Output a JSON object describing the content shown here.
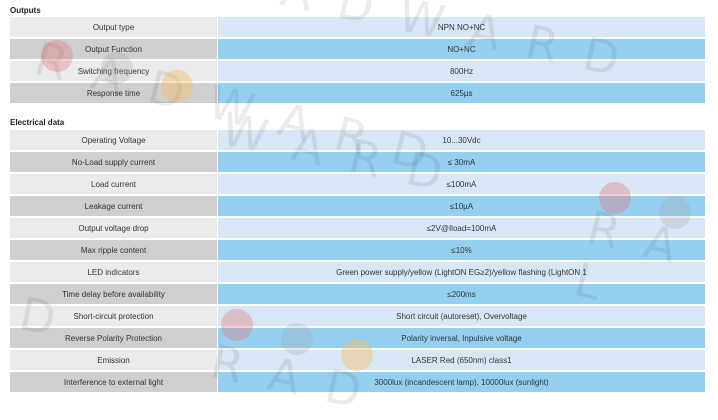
{
  "outputs": {
    "title": "Outputs",
    "rows": [
      {
        "label": "Output type",
        "value": "NPN NO+NC"
      },
      {
        "label": "Output Function",
        "value": "NO+NC"
      },
      {
        "label": "Switching frequency",
        "value": "800Hz"
      },
      {
        "label": "Response time",
        "value": "625µs"
      }
    ]
  },
  "electrical": {
    "title": "Electrical data",
    "rows": [
      {
        "label": "Operating Voltage",
        "value": "10...30Vdc"
      },
      {
        "label": "No-Load supply current",
        "value": "≤ 30mA"
      },
      {
        "label": "Load current",
        "value": "≤100mA"
      },
      {
        "label": "Leakage current",
        "value": "≤10µA"
      },
      {
        "label": "Output voltage drop",
        "value": "≤2V@Iload=100mA"
      },
      {
        "label": "Max ripple content",
        "value": "≤10%"
      },
      {
        "label": "LED indicators",
        "value": "Green power supply/yellow (LightON EG≥2)/yellow flashing (LightON 1"
      },
      {
        "label": "Time delay before availability",
        "value": "≤200ms"
      },
      {
        "label": "Short-circuit protection",
        "value": "Short circuit (autoreset), Overvoltage"
      },
      {
        "label": "Reverse Polarity Protection",
        "value": "Polarity inversal, Inpulsive voltage"
      },
      {
        "label": "Emission",
        "value": "LASER Red (650nm) class1"
      },
      {
        "label": "Interference to external light",
        "value": "3000lux (incandescent lamp), 10000lux (sunlight)"
      }
    ]
  },
  "watermark": {
    "text": "RADWARD",
    "dot_colors": [
      "#e57373",
      "#9e9e9e",
      "#f5c26b"
    ]
  }
}
